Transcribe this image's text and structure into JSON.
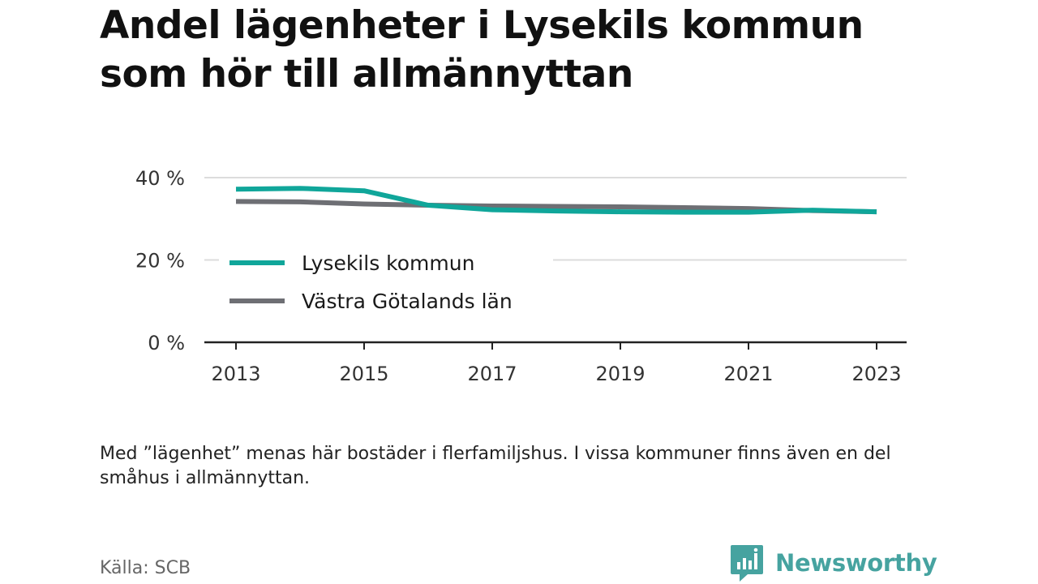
{
  "title": "Andel lägenheter i Lysekils kommun som hör till allmännyttan",
  "note": "Med ”lägenhet” menas här bostäder i flerfamiljshus. I vissa kommuner finns även en del småhus i allmännyttan.",
  "source": "Källa: SCB",
  "brand": {
    "name": "Newsworthy",
    "icon": "newsworthy-logo-icon",
    "color": "#46a3a0"
  },
  "chart_data": {
    "type": "line",
    "x": [
      2013,
      2014,
      2015,
      2016,
      2017,
      2018,
      2019,
      2020,
      2021,
      2022,
      2023
    ],
    "xticks": [
      "2013",
      "2015",
      "2017",
      "2019",
      "2021",
      "2023"
    ],
    "yticks": [
      "0 %",
      "20 %",
      "40 %"
    ],
    "ylim": [
      0,
      40
    ],
    "grid": true,
    "legend_position": "inside-left",
    "series": [
      {
        "name": "Lysekils kommun",
        "color": "#10a69a",
        "values": [
          37.2,
          37.4,
          36.8,
          33.3,
          32.2,
          31.9,
          31.7,
          31.6,
          31.6,
          32.1,
          31.7
        ]
      },
      {
        "name": "Västra Götalands län",
        "color": "#6e6f74",
        "values": [
          34.2,
          34.1,
          33.6,
          33.3,
          33.1,
          33.0,
          32.9,
          32.7,
          32.5,
          32.0,
          31.7
        ]
      }
    ]
  }
}
